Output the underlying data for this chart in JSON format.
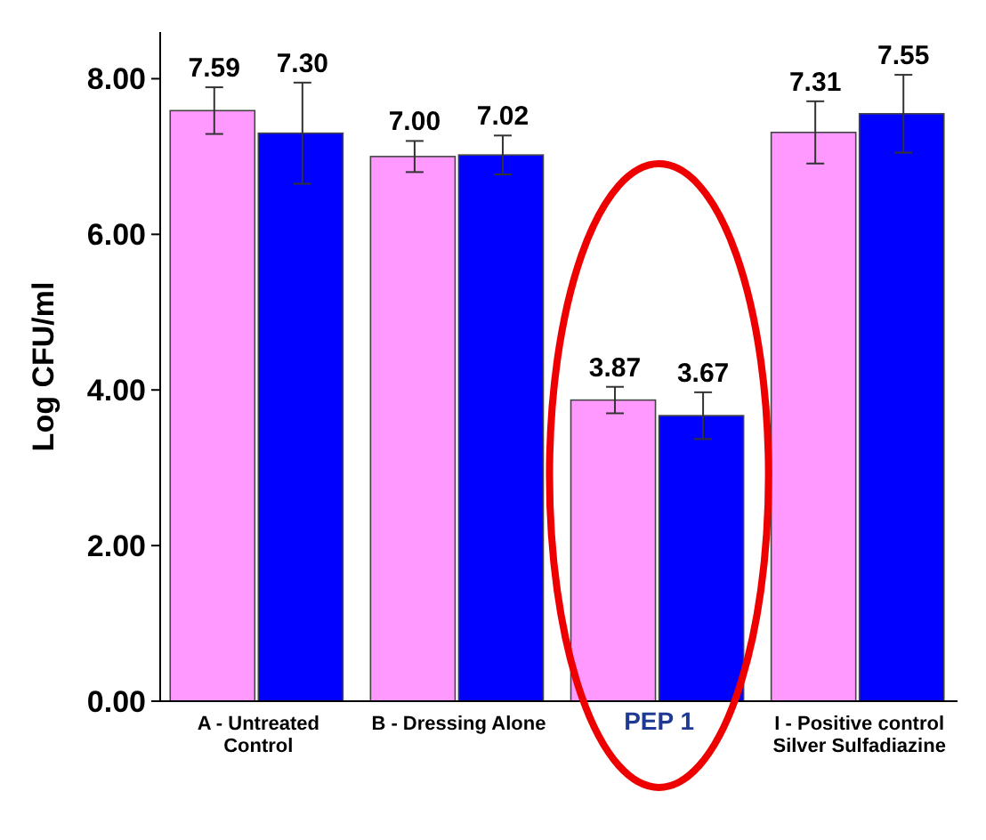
{
  "chart_data": {
    "type": "bar",
    "ylabel": "Log CFU/ml",
    "categories": [
      "A - Untreated Control",
      "B - Dressing Alone",
      "PEP 1",
      "I - Positive control Silver Sulfadiazine"
    ],
    "series": [
      {
        "color": "#ff99ff",
        "values": [
          7.59,
          7.0,
          3.87,
          7.31
        ],
        "value_labels": [
          "7.59",
          "7.00",
          "3.87",
          "7.31"
        ],
        "errors": [
          0.3,
          0.2,
          0.17,
          0.4
        ]
      },
      {
        "color": "#0000ff",
        "values": [
          7.3,
          7.02,
          3.67,
          7.55
        ],
        "value_labels": [
          "7.30",
          "7.02",
          "3.67",
          "7.55"
        ],
        "errors": [
          0.65,
          0.25,
          0.3,
          0.5
        ]
      }
    ],
    "ylim": [
      0,
      8.6
    ],
    "yticks": [
      {
        "value": 0,
        "label": "0.00"
      },
      {
        "value": 2,
        "label": "2.00"
      },
      {
        "value": 4,
        "label": "4.00"
      },
      {
        "value": 6,
        "label": "6.00"
      },
      {
        "value": 8,
        "label": "8.00"
      }
    ],
    "grid": false
  }
}
